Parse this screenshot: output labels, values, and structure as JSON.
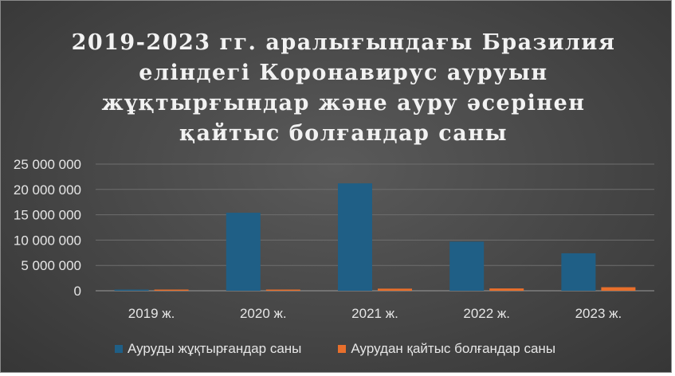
{
  "chart_data": {
    "type": "bar",
    "title": "2019-2023 гг. аралығындағы Бразилия\nеліндегі  Коронавирус ауруын\nжұқтырғындар және ауру әсерінен\nқайтыс болғандар саны",
    "categories": [
      "2019 ж.",
      "2020 ж.",
      "2021 ж.",
      "2022 ж.",
      "2023 ж."
    ],
    "series": [
      {
        "name": "Ауруды жұқтырғандар саны",
        "color": "#1f5f86",
        "values": [
          0,
          15400000,
          21200000,
          9700000,
          7400000
        ]
      },
      {
        "name": "Аурудан қайтыс болғандар саны",
        "color": "#e86f2c",
        "values": [
          0,
          200000,
          420000,
          460000,
          700000
        ]
      }
    ],
    "ylim": [
      0,
      25000000
    ],
    "yticks": [
      0,
      5000000,
      10000000,
      15000000,
      20000000,
      25000000
    ],
    "ytick_labels": [
      "0",
      "5 000 000",
      "10 000 000",
      "15 000 000",
      "20 000 000",
      "25 000 000"
    ],
    "grid": true,
    "legend_position": "bottom"
  }
}
